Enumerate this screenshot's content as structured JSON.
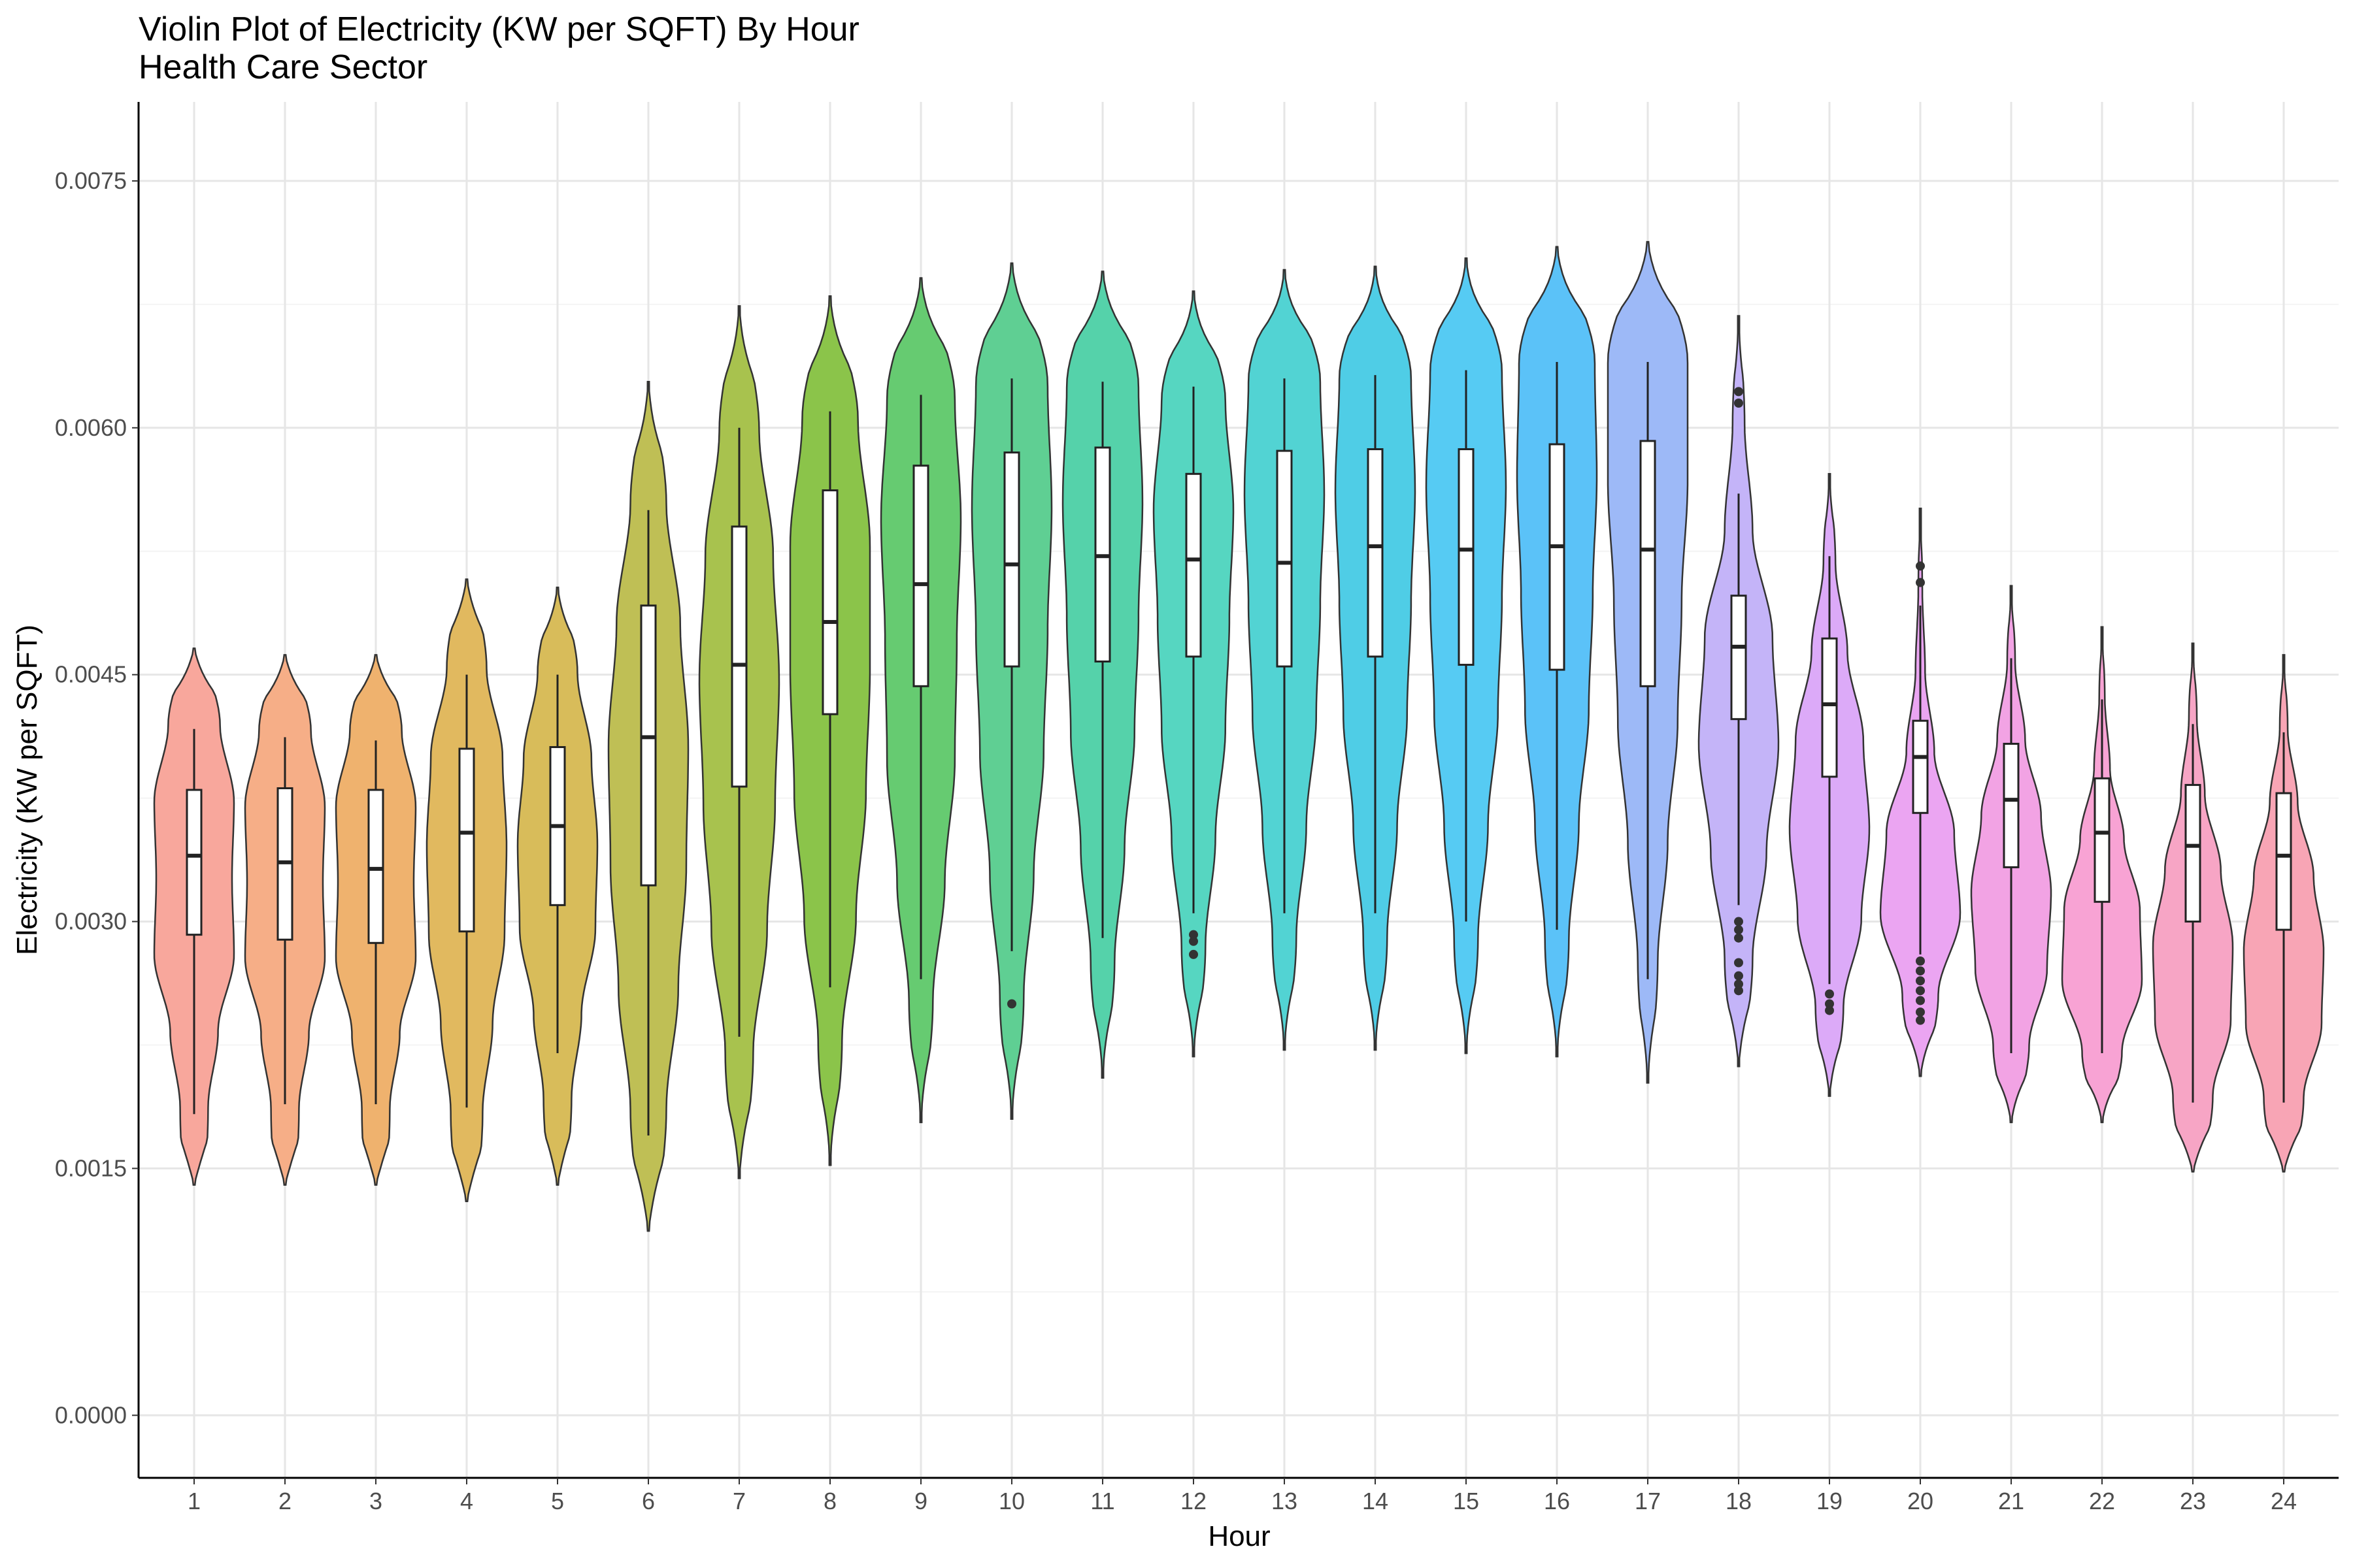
{
  "chart_data": {
    "type": "violin",
    "title": "Violin Plot of Electricity (KW per SQFT) By Hour",
    "subtitle": "Health Care Sector",
    "xlabel": "Hour",
    "ylabel": "Electricity (KW per SQFT)",
    "ylim": [
      -0.00038,
      0.00798
    ],
    "y_ticks": [
      0.0,
      0.0015,
      0.003,
      0.0045,
      0.006,
      0.0075
    ],
    "y_tick_labels": [
      "0.0000",
      "0.0015",
      "0.0030",
      "0.0045",
      "0.0060",
      "0.0075"
    ],
    "grid": true,
    "legend": "none",
    "categories": [
      "1",
      "2",
      "3",
      "4",
      "5",
      "6",
      "7",
      "8",
      "9",
      "10",
      "11",
      "12",
      "13",
      "14",
      "15",
      "16",
      "17",
      "18",
      "19",
      "20",
      "21",
      "22",
      "23",
      "24"
    ],
    "series": [
      {
        "hour": "1",
        "color": "#F8A79C",
        "min": 0.0014,
        "q1": 0.00292,
        "median": 0.0034,
        "q3": 0.0038,
        "max": 0.00466,
        "whisker_low": 0.00183,
        "whisker_high": 0.00417,
        "outliers": [],
        "violin_width": [
          0.3,
          0.35,
          0.6,
          1.0,
          0.95,
          1.0,
          0.65,
          0.3
        ]
      },
      {
        "hour": "2",
        "color": "#F6AE87",
        "min": 0.0014,
        "q1": 0.00289,
        "median": 0.00336,
        "q3": 0.00381,
        "max": 0.00462,
        "whisker_low": 0.00189,
        "whisker_high": 0.00412,
        "outliers": [],
        "violin_width": [
          0.3,
          0.35,
          0.6,
          1.0,
          0.95,
          1.0,
          0.65,
          0.3
        ]
      },
      {
        "hour": "3",
        "color": "#EFB26E",
        "min": 0.0014,
        "q1": 0.00287,
        "median": 0.00332,
        "q3": 0.0038,
        "max": 0.00462,
        "whisker_low": 0.00189,
        "whisker_high": 0.0041,
        "outliers": [],
        "violin_width": [
          0.3,
          0.35,
          0.6,
          1.0,
          0.95,
          1.0,
          0.65,
          0.3
        ]
      },
      {
        "hour": "4",
        "color": "#E1B95F",
        "min": 0.0013,
        "q1": 0.00294,
        "median": 0.00354,
        "q3": 0.00405,
        "max": 0.00508,
        "whisker_low": 0.00187,
        "whisker_high": 0.0045,
        "outliers": [],
        "violin_width": [
          0.3,
          0.4,
          0.65,
          0.95,
          1.0,
          0.9,
          0.5,
          0.25
        ]
      },
      {
        "hour": "5",
        "color": "#D8BC5A",
        "min": 0.0014,
        "q1": 0.0031,
        "median": 0.00358,
        "q3": 0.00406,
        "max": 0.00503,
        "whisker_low": 0.0022,
        "whisker_high": 0.0045,
        "outliers": [],
        "violin_width": [
          0.25,
          0.35,
          0.6,
          0.95,
          1.0,
          0.85,
          0.5,
          0.2
        ]
      },
      {
        "hour": "6",
        "color": "#BFBF55",
        "min": 0.00112,
        "q1": 0.00322,
        "median": 0.00412,
        "q3": 0.00492,
        "max": 0.00628,
        "whisker_low": 0.0017,
        "whisker_high": 0.0055,
        "outliers": [],
        "violin_width": [
          0.25,
          0.45,
          0.75,
          0.95,
          1.0,
          0.8,
          0.45,
          0.15
        ]
      },
      {
        "hour": "7",
        "color": "#A8C24E",
        "min": 0.00144,
        "q1": 0.00382,
        "median": 0.00456,
        "q3": 0.0054,
        "max": 0.00674,
        "whisker_low": 0.0023,
        "whisker_high": 0.006,
        "outliers": [],
        "violin_width": [
          0.15,
          0.35,
          0.7,
          0.9,
          1.0,
          0.85,
          0.5,
          0.15
        ]
      },
      {
        "hour": "8",
        "color": "#8BC44A",
        "min": 0.00152,
        "q1": 0.00426,
        "median": 0.00482,
        "q3": 0.00562,
        "max": 0.0068,
        "whisker_low": 0.0026,
        "whisker_high": 0.0061,
        "outliers": [],
        "violin_width": [
          0.1,
          0.3,
          0.65,
          0.9,
          1.0,
          1.0,
          0.7,
          0.2
        ]
      },
      {
        "hour": "9",
        "color": "#66CB71",
        "min": 0.00178,
        "q1": 0.00443,
        "median": 0.00505,
        "q3": 0.00577,
        "max": 0.00691,
        "whisker_low": 0.00265,
        "whisker_high": 0.0062,
        "outliers": [],
        "violin_width": [
          0.1,
          0.3,
          0.6,
          0.85,
          0.9,
          1.0,
          0.85,
          0.25
        ]
      },
      {
        "hour": "10",
        "color": "#5FCF93",
        "min": 0.0018,
        "q1": 0.00455,
        "median": 0.00517,
        "q3": 0.00585,
        "max": 0.007,
        "whisker_low": 0.00282,
        "whisker_high": 0.0063,
        "outliers": [
          0.0025
        ],
        "violin_width": [
          0.1,
          0.3,
          0.55,
          0.8,
          0.9,
          1.0,
          0.9,
          0.25
        ]
      },
      {
        "hour": "11",
        "color": "#55D2AA",
        "min": 0.00205,
        "q1": 0.00458,
        "median": 0.00522,
        "q3": 0.00588,
        "max": 0.00695,
        "whisker_low": 0.0029,
        "whisker_high": 0.00628,
        "outliers": [],
        "violin_width": [
          0.1,
          0.3,
          0.55,
          0.8,
          0.9,
          1.0,
          0.9,
          0.25
        ]
      },
      {
        "hour": "12",
        "color": "#56D6C1",
        "min": 0.00218,
        "q1": 0.00461,
        "median": 0.0052,
        "q3": 0.00572,
        "max": 0.00683,
        "whisker_low": 0.00305,
        "whisker_high": 0.00625,
        "outliers": [
          0.0028,
          0.00288,
          0.00292
        ],
        "violin_width": [
          0.1,
          0.3,
          0.55,
          0.8,
          0.9,
          1.0,
          0.8,
          0.2
        ]
      },
      {
        "hour": "13",
        "color": "#52D3D3",
        "min": 0.00222,
        "q1": 0.00455,
        "median": 0.00518,
        "q3": 0.00586,
        "max": 0.00696,
        "whisker_low": 0.00305,
        "whisker_high": 0.0063,
        "outliers": [],
        "violin_width": [
          0.1,
          0.3,
          0.55,
          0.8,
          0.9,
          1.0,
          0.9,
          0.2
        ]
      },
      {
        "hour": "14",
        "color": "#4FCDE6",
        "min": 0.00222,
        "q1": 0.00461,
        "median": 0.00528,
        "q3": 0.00587,
        "max": 0.00698,
        "whisker_low": 0.00305,
        "whisker_high": 0.00632,
        "outliers": [],
        "violin_width": [
          0.1,
          0.3,
          0.55,
          0.8,
          0.9,
          1.0,
          0.9,
          0.2
        ]
      },
      {
        "hour": "15",
        "color": "#56CBF3",
        "min": 0.0022,
        "q1": 0.00456,
        "median": 0.00526,
        "q3": 0.00587,
        "max": 0.00703,
        "whisker_low": 0.003,
        "whisker_high": 0.00635,
        "outliers": [],
        "violin_width": [
          0.1,
          0.3,
          0.55,
          0.8,
          0.9,
          1.0,
          0.9,
          0.2
        ]
      },
      {
        "hour": "16",
        "color": "#5BC2F8",
        "min": 0.00218,
        "q1": 0.00453,
        "median": 0.00528,
        "q3": 0.0059,
        "max": 0.0071,
        "whisker_low": 0.00295,
        "whisker_high": 0.0064,
        "outliers": [],
        "violin_width": [
          0.1,
          0.3,
          0.55,
          0.8,
          0.9,
          1.0,
          0.95,
          0.25
        ]
      },
      {
        "hour": "17",
        "color": "#9DB9F7",
        "min": 0.00202,
        "q1": 0.00443,
        "median": 0.00526,
        "q3": 0.00592,
        "max": 0.00713,
        "whisker_low": 0.00265,
        "whisker_high": 0.0064,
        "outliers": [],
        "violin_width": [
          0.1,
          0.25,
          0.5,
          0.75,
          0.85,
          1.0,
          1.0,
          0.3
        ]
      },
      {
        "hour": "18",
        "color": "#C4B4F8",
        "min": 0.00212,
        "q1": 0.00423,
        "median": 0.00467,
        "q3": 0.00498,
        "max": 0.00668,
        "whisker_low": 0.0031,
        "whisker_high": 0.0056,
        "outliers": [
          0.00258,
          0.00262,
          0.00267,
          0.00275,
          0.0029,
          0.00295,
          0.003,
          0.00615,
          0.00622
        ],
        "violin_width": [
          0.15,
          0.35,
          0.7,
          1.0,
          0.85,
          0.35,
          0.15,
          0.05
        ]
      },
      {
        "hour": "19",
        "color": "#DCAAF8",
        "min": 0.00194,
        "q1": 0.00388,
        "median": 0.00432,
        "q3": 0.00472,
        "max": 0.00572,
        "whisker_low": 0.00262,
        "whisker_high": 0.00522,
        "outliers": [
          0.00246,
          0.0025,
          0.00256
        ],
        "violin_width": [
          0.15,
          0.35,
          0.8,
          1.0,
          0.85,
          0.45,
          0.15,
          0.05
        ]
      },
      {
        "hour": "20",
        "color": "#EBA5F2",
        "min": 0.00206,
        "q1": 0.00366,
        "median": 0.004,
        "q3": 0.00422,
        "max": 0.00551,
        "whisker_low": 0.0028,
        "whisker_high": 0.00492,
        "outliers": [
          0.0024,
          0.00245,
          0.00252,
          0.00258,
          0.00264,
          0.0027,
          0.00276,
          0.00506,
          0.00516
        ],
        "violin_width": [
          0.2,
          0.45,
          1.0,
          0.85,
          0.35,
          0.12,
          0.05,
          0.02
        ]
      },
      {
        "hour": "21",
        "color": "#F2A3E4",
        "min": 0.00178,
        "q1": 0.00333,
        "median": 0.00374,
        "q3": 0.00408,
        "max": 0.00504,
        "whisker_low": 0.0022,
        "whisker_high": 0.0046,
        "outliers": [],
        "violin_width": [
          0.2,
          0.45,
          0.9,
          1.0,
          0.75,
          0.35,
          0.1,
          0.03
        ]
      },
      {
        "hour": "22",
        "color": "#F8A3D4",
        "min": 0.00178,
        "q1": 0.00312,
        "median": 0.00354,
        "q3": 0.00387,
        "max": 0.00479,
        "whisker_low": 0.0022,
        "whisker_high": 0.00435,
        "outliers": [],
        "violin_width": [
          0.2,
          0.5,
          1.0,
          0.95,
          0.55,
          0.2,
          0.07,
          0.02
        ]
      },
      {
        "hour": "23",
        "color": "#F7A5C5",
        "min": 0.00148,
        "q1": 0.003,
        "median": 0.00346,
        "q3": 0.00383,
        "max": 0.00469,
        "whisker_low": 0.0019,
        "whisker_high": 0.0042,
        "outliers": [],
        "violin_width": [
          0.3,
          0.5,
          0.95,
          1.0,
          0.7,
          0.3,
          0.1,
          0.03
        ]
      },
      {
        "hour": "24",
        "color": "#F8A5B5",
        "min": 0.00148,
        "q1": 0.00295,
        "median": 0.0034,
        "q3": 0.00378,
        "max": 0.00462,
        "whisker_low": 0.0019,
        "whisker_high": 0.00415,
        "outliers": [],
        "violin_width": [
          0.3,
          0.5,
          0.95,
          1.0,
          0.75,
          0.35,
          0.1,
          0.03
        ]
      }
    ]
  }
}
